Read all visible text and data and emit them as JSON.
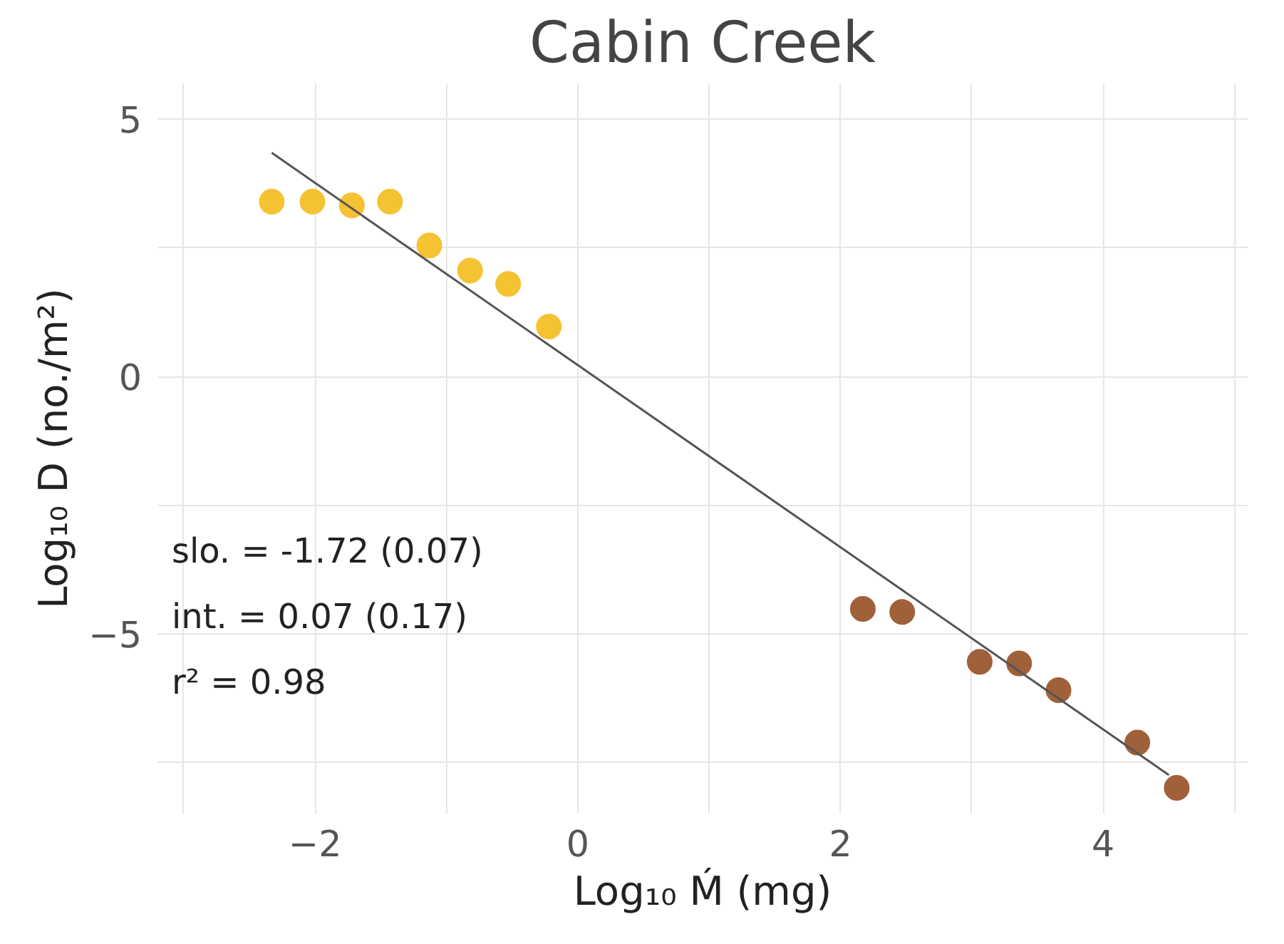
{
  "chart_data": {
    "type": "scatter",
    "title": "Cabin Creek",
    "xlabel": "Log₁₀ Ḿ (mg)",
    "ylabel": "Log₁₀ D (no./m²)",
    "annotations": [
      "slo. = -1.72 (0.07)",
      "int. = 0.07 (0.17)",
      "r² = 0.98"
    ],
    "series": [
      {
        "color": "#f5c232",
        "marker": "circle",
        "x": [
          -2.33,
          -2.02,
          -1.72,
          -1.43,
          -1.13,
          -0.82,
          -0.53,
          -0.22
        ],
        "values": [
          3.4,
          3.4,
          3.33,
          3.4,
          2.55,
          2.06,
          1.8,
          0.97
        ]
      },
      {
        "color": "#a0603a",
        "marker": "circle",
        "x": [
          2.17,
          2.47,
          3.06,
          3.36,
          3.66,
          4.26,
          4.56
        ],
        "values": [
          -4.52,
          -4.58,
          -5.55,
          -5.58,
          -6.1,
          -7.12,
          -8.0
        ]
      },
      {
        "type": "line",
        "color": "#555555",
        "x": [
          -2.33,
          4.5
        ],
        "values": [
          4.35,
          -7.75
        ]
      }
    ],
    "xlim": [
      -3.2,
      5.1
    ],
    "ylim": [
      -8.5,
      5.7
    ],
    "xticks": [
      {
        "value": -3,
        "label": null
      },
      {
        "value": -2,
        "label": "−2"
      },
      {
        "value": -1,
        "label": null
      },
      0,
      {
        "value": 1,
        "label": null
      },
      2,
      {
        "value": 3,
        "label": null
      },
      4,
      {
        "value": 5,
        "label": null
      }
    ],
    "yticks": [
      {
        "value": -7.5,
        "label": null
      },
      {
        "value": -5,
        "label": "−5"
      },
      {
        "value": -2.5,
        "label": null
      },
      0,
      {
        "value": 2.5,
        "label": null
      },
      5
    ],
    "grid": true
  }
}
